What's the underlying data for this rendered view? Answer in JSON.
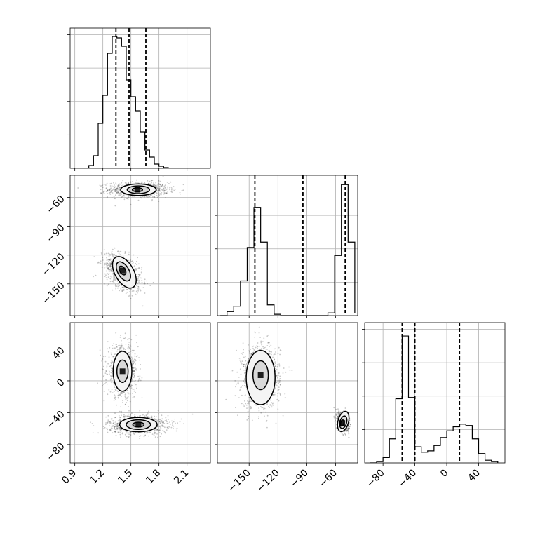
{
  "chart_data": {
    "type": "corner",
    "parameters": [
      {
        "id": "p0",
        "range": [
          0.85,
          2.35
        ],
        "ticks": [
          0.9,
          1.2,
          1.5,
          1.8,
          2.1
        ],
        "tick_labels": [
          "0.9",
          "1.2",
          "1.5",
          "1.8",
          "2.1"
        ]
      },
      {
        "id": "p1",
        "range": [
          -183,
          -37
        ],
        "ticks": [
          -150,
          -120,
          -90,
          -60
        ],
        "tick_labels": [
          "−150",
          "−120",
          "−90",
          "−60"
        ]
      },
      {
        "id": "p2",
        "range": [
          -103,
          73
        ],
        "ticks": [
          -80,
          -40,
          0,
          40
        ],
        "tick_labels": [
          "−80",
          "−40",
          "0",
          "40"
        ]
      }
    ],
    "histograms": [
      {
        "param": "p0",
        "bin_edges": [
          1.0,
          1.05,
          1.1,
          1.15,
          1.2,
          1.25,
          1.3,
          1.35,
          1.4,
          1.45,
          1.5,
          1.55,
          1.6,
          1.65,
          1.7,
          1.75,
          1.8,
          1.85,
          1.9,
          1.95,
          2.0,
          2.05,
          2.1
        ],
        "counts": [
          0.0,
          0.02,
          0.09,
          0.32,
          0.52,
          0.82,
          0.94,
          0.93,
          0.87,
          0.63,
          0.51,
          0.41,
          0.26,
          0.13,
          0.08,
          0.03,
          0.015,
          0.005,
          0.0,
          0.0,
          0.0,
          0.0
        ],
        "quantiles": [
          1.34,
          1.48,
          1.66
        ],
        "ymax": 1.0
      },
      {
        "param": "p1",
        "bin_edges": [
          -180,
          -173,
          -166,
          -159,
          -152,
          -145,
          -138,
          -131,
          -124,
          -117,
          -110,
          -103,
          -96,
          -89,
          -82,
          -75,
          -68,
          -61,
          -54,
          -47,
          -40
        ],
        "counts": [
          0.0,
          0.03,
          0.07,
          0.26,
          0.51,
          0.81,
          0.55,
          0.08,
          0.01,
          0.0,
          0.0,
          0.0,
          0.0,
          0.0,
          0.0,
          0.0,
          0.02,
          0.45,
          0.98,
          0.55,
          0.02
        ],
        "quantiles": [
          -144,
          -94,
          -50
        ],
        "ymax": 1.05
      },
      {
        "param": "p2",
        "bin_edges": [
          -96,
          -88,
          -80,
          -72,
          -64,
          -56,
          -48,
          -40,
          -32,
          -24,
          -16,
          -8,
          0,
          8,
          16,
          24,
          32,
          40,
          48,
          56,
          64
        ],
        "counts": [
          0.0,
          0.01,
          0.04,
          0.18,
          0.48,
          0.95,
          0.49,
          0.12,
          0.08,
          0.09,
          0.13,
          0.19,
          0.24,
          0.27,
          0.29,
          0.28,
          0.18,
          0.07,
          0.02,
          0.01
        ],
        "quantiles": [
          -56,
          -40,
          16
        ],
        "ymax": 1.05
      }
    ],
    "pairs": [
      {
        "x_param": "p0",
        "y_param": "p1",
        "modes": [
          {
            "mean": [
              1.58,
              -52
            ],
            "sd": [
              0.16,
              4
            ],
            "rho": 0.0,
            "weight": 0.55
          },
          {
            "mean": [
              1.42,
              -138
            ],
            "sd": [
              0.1,
              10
            ],
            "rho": -0.45,
            "weight": 0.45
          }
        ],
        "contours": [
          {
            "mode": 0,
            "cx": 1.58,
            "cy": -52,
            "rx": 0.19,
            "ry": 6,
            "angle": 0
          },
          {
            "mode": 0,
            "cx": 1.58,
            "cy": -52,
            "rx": 0.12,
            "ry": 4,
            "angle": 0
          },
          {
            "mode": 0,
            "cx": 1.57,
            "cy": -52,
            "rx": 0.055,
            "ry": 2,
            "angle": 0
          },
          {
            "mode": 1,
            "cx": 1.43,
            "cy": -138,
            "rx": 0.1,
            "ry": 18,
            "angle": -30
          },
          {
            "mode": 1,
            "cx": 1.42,
            "cy": -137,
            "rx": 0.06,
            "ry": 11,
            "angle": -30
          },
          {
            "mode": 1,
            "cx": 1.41,
            "cy": -136,
            "rx": 0.03,
            "ry": 5,
            "angle": -30
          }
        ]
      },
      {
        "x_param": "p0",
        "y_param": "p2",
        "modes": [
          {
            "mean": [
              1.58,
              -55
            ],
            "sd": [
              0.16,
              6
            ],
            "rho": 0.0,
            "weight": 0.5
          },
          {
            "mean": [
              1.41,
              12
            ],
            "sd": [
              0.08,
              16
            ],
            "rho": 0.0,
            "weight": 0.5
          }
        ],
        "contours": [
          {
            "mode": 0,
            "cx": 1.58,
            "cy": -55,
            "rx": 0.2,
            "ry": 9,
            "angle": 0
          },
          {
            "mode": 0,
            "cx": 1.58,
            "cy": -55,
            "rx": 0.13,
            "ry": 6,
            "angle": 0
          },
          {
            "mode": 0,
            "cx": 1.58,
            "cy": -55,
            "rx": 0.06,
            "ry": 3,
            "angle": 0
          },
          {
            "mode": 1,
            "cx": 1.41,
            "cy": 12,
            "rx": 0.1,
            "ry": 25,
            "angle": 0
          },
          {
            "mode": 1,
            "cx": 1.41,
            "cy": 12,
            "rx": 0.06,
            "ry": 14,
            "angle": 0
          }
        ]
      },
      {
        "x_param": "p1",
        "y_param": "p2",
        "modes": [
          {
            "mean": [
              -138,
              6
            ],
            "sd": [
              10,
              20
            ],
            "rho": 0.0,
            "weight": 0.6
          },
          {
            "mean": [
              -52,
              -52
            ],
            "sd": [
              3,
              6
            ],
            "rho": -0.3,
            "weight": 0.4
          }
        ],
        "contours": [
          {
            "mode": 0,
            "cx": -138,
            "cy": 4,
            "rx": 15,
            "ry": 34,
            "angle": 0
          },
          {
            "mode": 0,
            "cx": -138,
            "cy": 7,
            "rx": 8,
            "ry": 18,
            "angle": 0
          },
          {
            "mode": 1,
            "cx": -52,
            "cy": -51,
            "rx": 5.5,
            "ry": 13,
            "angle": 15
          },
          {
            "mode": 1,
            "cx": -52,
            "cy": -52,
            "rx": 3.5,
            "ry": 8,
            "angle": 15
          },
          {
            "mode": 1,
            "cx": -53,
            "cy": -53,
            "rx": 1.6,
            "ry": 4,
            "angle": 15
          }
        ]
      }
    ]
  }
}
